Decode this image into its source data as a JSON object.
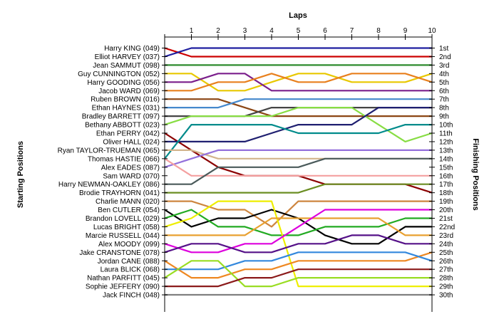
{
  "chart_data": {
    "type": "line",
    "title": "",
    "xlabel": "Laps",
    "ylabel_left": "Starting Positions",
    "ylabel_right": "Finishing Positions",
    "x": [
      0,
      1,
      2,
      3,
      4,
      5,
      6,
      7,
      8,
      9,
      10
    ],
    "x_tick_labels": [
      "1",
      "2",
      "3",
      "4",
      "5",
      "6",
      "7",
      "8",
      "9",
      "10"
    ],
    "finishing_labels": [
      "1st",
      "2nd",
      "3rd",
      "4th",
      "5th",
      "6th",
      "7th",
      "8th",
      "9th",
      "10th",
      "11th",
      "12th",
      "13th",
      "14th",
      "15th",
      "16th",
      "17th",
      "18th",
      "19th",
      "20th",
      "21st",
      "22nd",
      "23rd",
      "24th",
      "25th",
      "26th",
      "27th",
      "28th",
      "29th",
      "30th"
    ],
    "ylim": [
      1,
      30
    ],
    "series": [
      {
        "name": "Harry KING (049)",
        "color": "#cc0000",
        "values": [
          1,
          2,
          2,
          2,
          2,
          2,
          2,
          2,
          2,
          2,
          2
        ]
      },
      {
        "name": "Elliot HARVEY (037)",
        "color": "#1f1fa0",
        "values": [
          2,
          1,
          1,
          1,
          1,
          1,
          1,
          1,
          1,
          1,
          1
        ]
      },
      {
        "name": "Jean SAMMUT (098)",
        "color": "#2e8b2e",
        "values": [
          3,
          3,
          3,
          3,
          3,
          3,
          3,
          3,
          3,
          3,
          3
        ]
      },
      {
        "name": "Guy CUNNINGTON (052)",
        "color": "#e8c800",
        "values": [
          4,
          4,
          6,
          6,
          5,
          4,
          4,
          5,
          5,
          5,
          4
        ]
      },
      {
        "name": "Harry GOODING (056)",
        "color": "#7b1f8c",
        "values": [
          5,
          5,
          4,
          4,
          6,
          6,
          6,
          6,
          6,
          6,
          6
        ]
      },
      {
        "name": "Jacob WARD (069)",
        "color": "#e8801e",
        "values": [
          6,
          6,
          5,
          5,
          4,
          5,
          5,
          4,
          4,
          4,
          5
        ]
      },
      {
        "name": "Ruben BROWN (016)",
        "color": "#8b4513",
        "values": [
          7,
          7,
          7,
          8,
          9,
          9,
          9,
          9,
          9,
          9,
          9
        ]
      },
      {
        "name": "Ethan HAYNES (031)",
        "color": "#4488cc",
        "values": [
          8,
          8,
          8,
          7,
          7,
          7,
          7,
          7,
          7,
          7,
          7
        ]
      },
      {
        "name": "Bradley BARRETT (097)",
        "color": "#444444",
        "values": [
          9,
          9,
          9,
          9,
          8,
          8,
          8,
          8,
          8,
          8,
          8
        ]
      },
      {
        "name": "Bethany ABBOTT (023)",
        "color": "#88dd44",
        "values": [
          10,
          9,
          9,
          9,
          9,
          8,
          8,
          8,
          10,
          12,
          11
        ]
      },
      {
        "name": "Ethan PERRY (042)",
        "color": "#8b0000",
        "values": [
          11,
          13,
          15,
          16,
          16,
          16,
          17,
          17,
          17,
          17,
          18
        ]
      },
      {
        "name": "Oliver HALL (024)",
        "color": "#1f1f70",
        "values": [
          12,
          12,
          12,
          12,
          11,
          10,
          10,
          10,
          8,
          8,
          8
        ]
      },
      {
        "name": "Ryan TAYLOR-TRUEMAN (065)",
        "color": "#008b8b",
        "values": [
          14,
          10,
          10,
          10,
          10,
          11,
          11,
          11,
          11,
          10,
          10
        ]
      },
      {
        "name": "Thomas HASTIE (066)",
        "color": "#d2b48c",
        "values": [
          13,
          13,
          14,
          14,
          14,
          14,
          14,
          14,
          14,
          14,
          14
        ]
      },
      {
        "name": "Alex EADES (087)",
        "color": "#9370db",
        "values": [
          15,
          14,
          13,
          13,
          13,
          13,
          13,
          13,
          13,
          13,
          13
        ]
      },
      {
        "name": "Sam WARD (070)",
        "color": "#f4a0a0",
        "values": [
          14,
          16,
          16,
          16,
          16,
          16,
          16,
          16,
          16,
          16,
          16
        ]
      },
      {
        "name": "Harry NEWMAN-OAKLEY (086)",
        "color": "#4a5a5a",
        "values": [
          17,
          17,
          15,
          15,
          15,
          15,
          14,
          14,
          14,
          14,
          14
        ]
      },
      {
        "name": "Brodie TRAYHORN (041)",
        "color": "#6b8e23",
        "values": [
          18,
          18,
          18,
          18,
          18,
          18,
          17,
          17,
          17,
          17,
          17
        ]
      },
      {
        "name": "Charlie MANN (020)",
        "color": "#cd853f",
        "values": [
          19,
          19,
          20,
          20,
          22,
          19,
          19,
          19,
          19,
          19,
          19
        ]
      },
      {
        "name": "Ben CUTLER (054)",
        "color": "#000000",
        "values": [
          20,
          22,
          21,
          21,
          20,
          21,
          23,
          24,
          24,
          22,
          22
        ]
      },
      {
        "name": "Brandon LOVELL (029)",
        "color": "#22aa22",
        "values": [
          21,
          20,
          22,
          22,
          23,
          23,
          22,
          22,
          22,
          21,
          21
        ]
      },
      {
        "name": "Lucas BRIGHT (058)",
        "color": "#eeee00",
        "values": [
          22,
          21,
          19,
          19,
          19,
          29,
          29,
          29,
          29,
          29,
          29
        ]
      },
      {
        "name": "Marcie RUSSELL (044)",
        "color": "#e8a030",
        "values": [
          23,
          23,
          23,
          23,
          21,
          21,
          21,
          21,
          21,
          23,
          23
        ]
      },
      {
        "name": "Alex MOODY (099)",
        "color": "#dd00dd",
        "values": [
          24,
          25,
          25,
          24,
          24,
          22,
          20,
          20,
          20,
          20,
          20
        ]
      },
      {
        "name": "Jake CRANSTONE (078)",
        "color": "#551188",
        "values": [
          25,
          24,
          24,
          25,
          25,
          24,
          24,
          23,
          23,
          24,
          24
        ]
      },
      {
        "name": "Jordan CANE (088)",
        "color": "#ee8822",
        "values": [
          26,
          28,
          28,
          27,
          27,
          26,
          26,
          26,
          26,
          26,
          25
        ]
      },
      {
        "name": "Laura BLICK (068)",
        "color": "#3388dd",
        "values": [
          27,
          27,
          27,
          26,
          26,
          25,
          25,
          25,
          25,
          25,
          26
        ]
      },
      {
        "name": "Nathan PARFITT (045)",
        "color": "#99dd22",
        "values": [
          28,
          26,
          26,
          29,
          29,
          28,
          28,
          28,
          28,
          28,
          28
        ]
      },
      {
        "name": "Sophie JEFFERY (090)",
        "color": "#8b1a1a",
        "values": [
          29,
          29,
          29,
          28,
          28,
          27,
          27,
          27,
          27,
          27,
          27
        ]
      },
      {
        "name": "Jack FINCH (048)",
        "color": "#808080",
        "values": [
          30,
          30,
          30,
          30,
          30,
          30,
          30,
          30,
          30,
          30,
          30
        ]
      }
    ]
  }
}
